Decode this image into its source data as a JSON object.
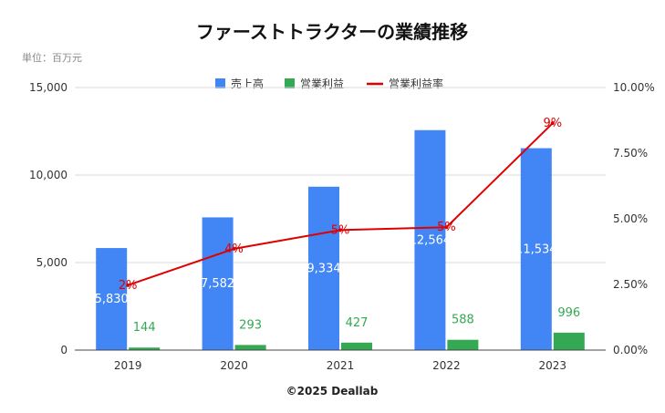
{
  "chart_data": {
    "type": "bar",
    "title": "ファーストトラクターの業績推移",
    "unit_label": "単位：百万元",
    "footer": "©2025 Deallab",
    "categories": [
      "2019",
      "2020",
      "2021",
      "2022",
      "2023"
    ],
    "series": [
      {
        "name": "売上高",
        "type": "bar",
        "axis": "left",
        "color": "#4285f4",
        "values": [
          5830,
          7582,
          9334,
          12564,
          11534
        ],
        "labels": [
          "5,830",
          "7,582",
          "9,334",
          "12,564",
          "11,534"
        ]
      },
      {
        "name": "営業利益",
        "type": "bar",
        "axis": "left",
        "color": "#34a853",
        "values": [
          144,
          293,
          427,
          588,
          996
        ],
        "labels": [
          "144",
          "293",
          "427",
          "588",
          "996"
        ]
      },
      {
        "name": "営業利益率",
        "type": "line",
        "axis": "right",
        "color": "#e00000",
        "values": [
          2.47,
          3.86,
          4.57,
          4.68,
          8.64
        ],
        "labels": [
          "2%",
          "4%",
          "5%",
          "5%",
          "9%"
        ]
      }
    ],
    "y_left": {
      "min": 0,
      "max": 15000,
      "ticks": [
        0,
        5000,
        10000,
        15000
      ],
      "tick_labels": [
        "0",
        "5,000",
        "10,000",
        "15,000"
      ]
    },
    "y_right": {
      "min": 0,
      "max": 10,
      "ticks": [
        0,
        2.5,
        5,
        7.5,
        10
      ],
      "tick_labels": [
        "0.00%",
        "2.50%",
        "5.00%",
        "7.50%",
        "10.00%"
      ]
    },
    "grid": true,
    "legend_position": "top-center"
  }
}
